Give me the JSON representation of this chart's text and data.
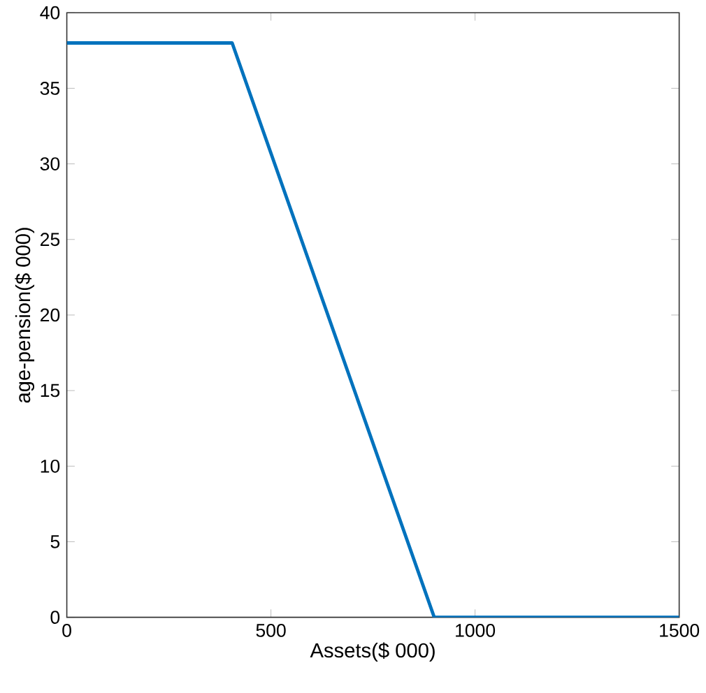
{
  "chart_data": {
    "type": "line",
    "xlabel": "Assets($ 000)",
    "ylabel": "age-pension($ 000)",
    "x": [
      0,
      405,
      900,
      1500
    ],
    "series": [
      {
        "color": "#0072bd",
        "values": [
          38,
          38,
          0,
          0
        ]
      }
    ],
    "xlim": [
      0,
      1500
    ],
    "ylim": [
      0,
      40
    ],
    "xticks": [
      0,
      500,
      1000,
      1500
    ],
    "yticks": [
      0,
      5,
      10,
      15,
      20,
      25,
      30,
      35,
      40
    ],
    "grid": false,
    "marker": "none",
    "line_style": "solid"
  }
}
